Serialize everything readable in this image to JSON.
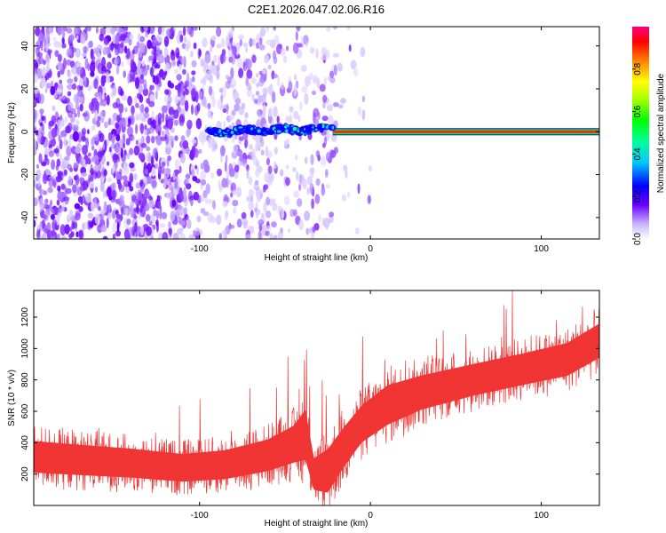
{
  "title": "C2E1.2026.047.02.06.R16",
  "colorbar": {
    "label": "Normalized spectral amplitude",
    "ticks": [
      "0.0",
      "0.2",
      "0.4",
      "0.6",
      "0.8"
    ],
    "tick_values": [
      0.0,
      0.2,
      0.4,
      0.6,
      0.8
    ],
    "range": [
      0,
      1
    ]
  },
  "chart_data": [
    {
      "type": "heatmap",
      "xlabel": "Height of straight line (km)",
      "ylabel": "Frequency (Hz)",
      "xlim": [
        -197,
        134
      ],
      "ylim": [
        -50,
        49
      ],
      "x_ticks": [
        -100,
        0,
        100
      ],
      "x_tick_labels": [
        "-100",
        "0",
        "100"
      ],
      "y_ticks": [
        -40,
        -20,
        0,
        20,
        40
      ],
      "y_tick_labels": [
        "-40",
        "-20",
        "0",
        "20",
        "40"
      ],
      "noise_region_km": [
        -197,
        -20
      ],
      "signal_freq_hz": 0,
      "signal_start_km": -95,
      "strong_signal_start_km": -22,
      "signal_end_km": 134
    },
    {
      "type": "line",
      "xlabel": "Height of straight line (km)",
      "ylabel": "SNR (10 * v/v)",
      "xlim": [
        -197,
        134
      ],
      "ylim": [
        0,
        1370
      ],
      "x_ticks": [
        -100,
        0,
        100
      ],
      "x_tick_labels": [
        "-100",
        "0",
        "100"
      ],
      "y_ticks": [
        200,
        400,
        600,
        800,
        1000,
        1200
      ],
      "y_tick_labels": [
        "200",
        "400",
        "600",
        "800",
        "1000",
        "1200"
      ],
      "color": "#f03535",
      "trend_x": [
        -197,
        -170,
        -140,
        -110,
        -85,
        -60,
        -45,
        -38,
        -33,
        -25,
        -15,
        -5,
        10,
        30,
        60,
        90,
        115,
        134
      ],
      "trend_y": [
        310,
        290,
        270,
        240,
        260,
        320,
        390,
        450,
        200,
        220,
        380,
        520,
        640,
        720,
        800,
        870,
        930,
        1050
      ],
      "spread_y": [
        240,
        230,
        220,
        210,
        220,
        240,
        280,
        380,
        240,
        330,
        300,
        280,
        300,
        260,
        240,
        240,
        250,
        260
      ]
    }
  ]
}
